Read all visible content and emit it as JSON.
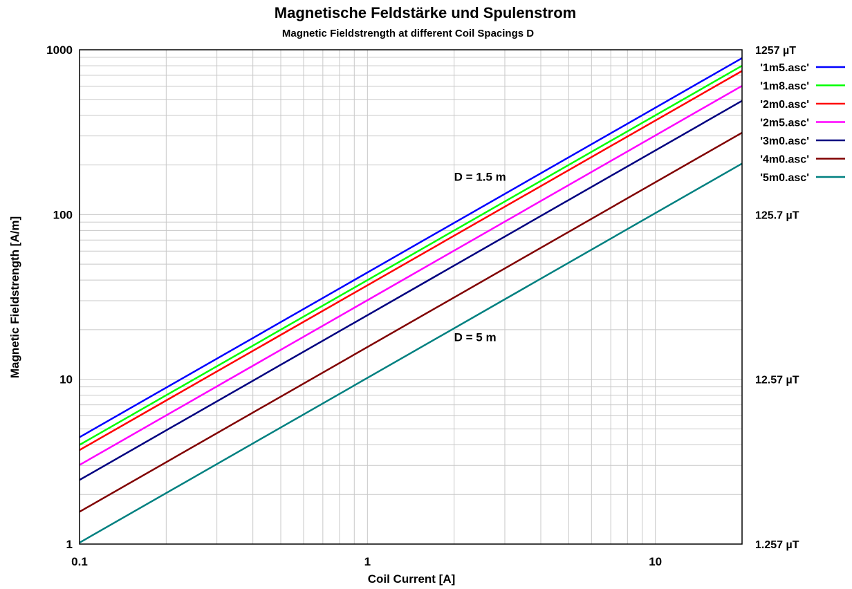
{
  "chart_data": {
    "type": "line",
    "title": "Magnetische Feldstärke und Spulenstrom",
    "subtitle": "Magnetic Fieldstrength at different Coil Spacings D",
    "xlabel": "Coil Current [A]",
    "ylabel": "Magnetic Fieldstrength [A/m]",
    "x_scale": "log",
    "y_scale": "log",
    "xlim": [
      0.1,
      20
    ],
    "ylim": [
      1,
      1000
    ],
    "grid": true,
    "legend_position": "right",
    "x_ticks": [
      {
        "value": 0.1,
        "label": "0.1"
      },
      {
        "value": 1,
        "label": "1"
      },
      {
        "value": 10,
        "label": "10"
      }
    ],
    "y_ticks": [
      {
        "value": 1,
        "label": "1"
      },
      {
        "value": 10,
        "label": "10"
      },
      {
        "value": 100,
        "label": "100"
      },
      {
        "value": 1000,
        "label": "1000"
      }
    ],
    "y2_ticks": [
      {
        "value": 1,
        "label": "1.257 µT"
      },
      {
        "value": 10,
        "label": "12.57 µT"
      },
      {
        "value": 100,
        "label": "125.7 µT"
      },
      {
        "value": 1000,
        "label": "1257 µT"
      }
    ],
    "series": [
      {
        "name": "'1m5.asc'",
        "color": "#0000ff",
        "x": [
          0.1,
          20
        ],
        "y": [
          4.45,
          890
        ]
      },
      {
        "name": "'1m8.asc'",
        "color": "#00ff00",
        "x": [
          0.1,
          20
        ],
        "y": [
          4.0,
          800
        ]
      },
      {
        "name": "'2m0.asc'",
        "color": "#ff0000",
        "x": [
          0.1,
          20
        ],
        "y": [
          3.72,
          744
        ]
      },
      {
        "name": "'2m5.asc'",
        "color": "#ff00ff",
        "x": [
          0.1,
          20
        ],
        "y": [
          3.02,
          604
        ]
      },
      {
        "name": "'3m0.asc'",
        "color": "#000080",
        "x": [
          0.1,
          20
        ],
        "y": [
          2.45,
          490
        ]
      },
      {
        "name": "'4m0.asc'",
        "color": "#800000",
        "x": [
          0.1,
          20
        ],
        "y": [
          1.57,
          314
        ]
      },
      {
        "name": "'5m0.asc'",
        "color": "#008080",
        "x": [
          0.1,
          20
        ],
        "y": [
          1.02,
          204
        ]
      }
    ],
    "annotations": [
      {
        "text": "D = 1.5 m",
        "x": 2.0,
        "y": 160
      },
      {
        "text": "D = 5 m",
        "x": 2.0,
        "y": 17
      }
    ]
  }
}
